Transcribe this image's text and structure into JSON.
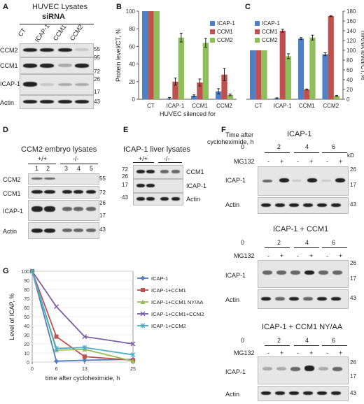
{
  "panels": {
    "A": {
      "letter": "A",
      "title": "HUVEC Lysates",
      "subtitle": "siRNA",
      "lanes": [
        "CT",
        "ICAP-1",
        "CCM1",
        "CCM2"
      ],
      "rows": [
        "CCM2",
        "CCM1",
        "ICAP-1",
        "Actin"
      ],
      "mw": [
        "55",
        "95",
        "72",
        "26",
        "17",
        "43"
      ]
    },
    "B": {
      "letter": "B"
    },
    "C": {
      "letter": "C"
    },
    "D": {
      "letter": "D",
      "title": "CCM2 embryo lysates",
      "genotypes": [
        "+/+",
        "-/-"
      ],
      "lanes": [
        "1",
        "2",
        "3",
        "4",
        "5"
      ],
      "rows": [
        "CCM2",
        "CCM1",
        "ICAP-1",
        "Actin"
      ],
      "mw": [
        "55",
        "72",
        "26",
        "17",
        "43"
      ]
    },
    "E": {
      "letter": "E",
      "title": "ICAP-1 liver lysates",
      "genotypes": [
        "+/+",
        "-/-"
      ],
      "rows": [
        "CCM1",
        "ICAP-1",
        "Actin"
      ],
      "mw": [
        "72",
        "26",
        "17",
        "43"
      ]
    },
    "F": {
      "letter": "F",
      "time_label_1": "Time after",
      "time_label_2": "cycloheximide, h",
      "kd": "kD",
      "mg132": "MG132",
      "times": [
        "0",
        "2",
        "4",
        "6"
      ],
      "signs": [
        "-",
        "+",
        "-",
        "+",
        "-",
        "+"
      ],
      "blocks": [
        {
          "title": "ICAP-1",
          "rows": [
            "ICAP-1",
            "Actin"
          ],
          "mw": [
            "26",
            "17",
            "43"
          ]
        },
        {
          "title": "ICAP-1 + CCM1",
          "rows": [
            "ICAP-1",
            "Actin"
          ],
          "mw": [
            "26",
            "17",
            "43"
          ]
        },
        {
          "title": "ICAP-1 + CCM1 NY/AA",
          "rows": [
            "ICAP-1",
            "Actin"
          ],
          "mw": [
            "26",
            "17",
            "43"
          ]
        }
      ]
    },
    "G": {
      "letter": "G"
    }
  },
  "chart_data": [
    {
      "id": "B",
      "type": "bar",
      "ylabel": "Protein level/CT, %",
      "xlabel": "HUVEC silenced for",
      "categories": [
        "CT",
        "ICAP-1",
        "CCM1",
        "CCM2"
      ],
      "ylim": [
        0,
        100
      ],
      "yticks": [
        0,
        20,
        40,
        60,
        80,
        100
      ],
      "legend_position": "top-right",
      "series": [
        {
          "name": "ICAP-1",
          "color": "#4f7fc4",
          "values": [
            100,
            1,
            4,
            9
          ],
          "errors": [
            0,
            1,
            1,
            3
          ]
        },
        {
          "name": "CCM1",
          "color": "#c0504d",
          "values": [
            100,
            20,
            19,
            28
          ],
          "errors": [
            0,
            4,
            4,
            7
          ]
        },
        {
          "name": "CCM2",
          "color": "#8fbf5a",
          "values": [
            100,
            70,
            64,
            5
          ],
          "errors": [
            0,
            5,
            5,
            1
          ]
        }
      ]
    },
    {
      "id": "C",
      "type": "bar",
      "ylabel": "mRNA level/CT,%",
      "xlabel": "",
      "categories": [
        "CT",
        "ICAP-1",
        "CCM1",
        "CCM2"
      ],
      "ylim": [
        0,
        180
      ],
      "yticks": [
        0,
        20,
        40,
        60,
        80,
        100,
        120,
        140,
        160,
        180
      ],
      "legend_position": "top-left",
      "series": [
        {
          "name": "ICAP-1",
          "color": "#4f7fc4",
          "values": [
            100,
            2,
            124,
            92
          ],
          "errors": [
            0,
            1,
            2,
            3
          ]
        },
        {
          "name": "CCM1",
          "color": "#c0504d",
          "values": [
            100,
            140,
            20,
            170
          ],
          "errors": [
            0,
            3,
            1,
            1
          ]
        },
        {
          "name": "CCM2",
          "color": "#8fbf5a",
          "values": [
            100,
            88,
            126,
            7
          ],
          "errors": [
            0,
            5,
            5,
            1
          ]
        }
      ]
    },
    {
      "id": "G",
      "type": "line",
      "ylabel": "Level of ICAP, %",
      "xlabel": "time after cycloheximide, h",
      "x": [
        0,
        6,
        13,
        25
      ],
      "xticks": [
        0,
        6,
        13,
        25
      ],
      "ylim": [
        0,
        100
      ],
      "yticks": [
        0,
        10,
        20,
        30,
        40,
        50,
        60,
        70,
        80,
        90,
        100
      ],
      "legend_position": "right",
      "series": [
        {
          "name": "ICAP-1",
          "color": "#4f7fc4",
          "marker": "diamond",
          "values": [
            100,
            1,
            2,
            3
          ]
        },
        {
          "name": "ICAP-1+CCM1",
          "color": "#c0504d",
          "marker": "square",
          "values": [
            100,
            28,
            6,
            2
          ]
        },
        {
          "name": "ICAP-1+CCM1 NY/AA",
          "color": "#9bbb59",
          "marker": "triangle",
          "values": [
            100,
            13,
            14,
            1
          ]
        },
        {
          "name": "ICAP-1+CCM1+CCM2",
          "color": "#7b5ea7",
          "marker": "x",
          "values": [
            100,
            61,
            28,
            20
          ]
        },
        {
          "name": "ICAP-1+CCM2",
          "color": "#4bacc6",
          "marker": "asterisk",
          "values": [
            100,
            15,
            16,
            8
          ]
        }
      ]
    }
  ]
}
